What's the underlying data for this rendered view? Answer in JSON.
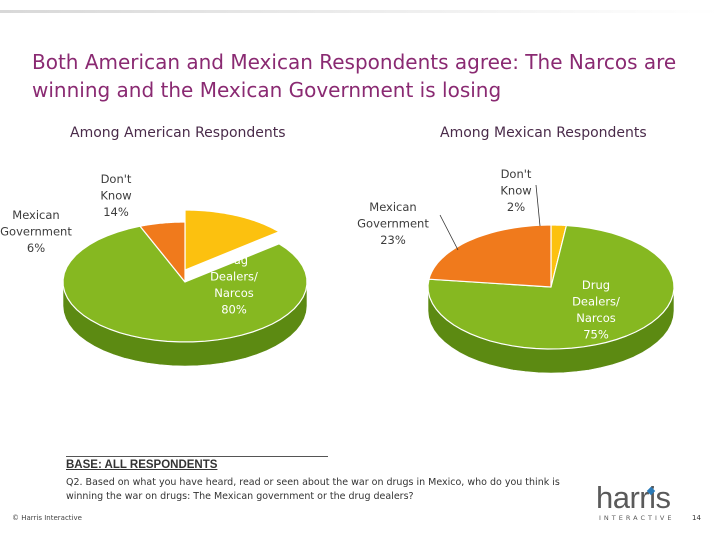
{
  "title": "Both American and Mexican Respondents agree:  The Narcos are winning and the Mexican Government is losing",
  "colors": {
    "title": "#8a2a72",
    "green": "#86b821",
    "green_side": "#5c8a12",
    "orange": "#f07a1c",
    "orange_side": "#b5561a",
    "yellow": "#fcc10f",
    "yellow_side": "#c89606"
  },
  "chart_data": [
    {
      "type": "pie",
      "title": "Among American Respondents",
      "slices": [
        {
          "label_lines": [
            "Don't",
            "Know"
          ],
          "value_text": "14%",
          "value": 14,
          "color": "yellow"
        },
        {
          "label_lines": [
            "Drug",
            "Dealers/",
            "Narcos"
          ],
          "value_text": "80%",
          "value": 80,
          "color": "green"
        },
        {
          "label_lines": [
            "Mexican",
            "Government"
          ],
          "value_text": "6%",
          "value": 6,
          "color": "orange"
        }
      ]
    },
    {
      "type": "pie",
      "title": "Among Mexican Respondents",
      "slices": [
        {
          "label_lines": [
            "Don't",
            "Know"
          ],
          "value_text": "2%",
          "value": 2,
          "color": "yellow"
        },
        {
          "label_lines": [
            "Drug",
            "Dealers/",
            "Narcos"
          ],
          "value_text": "75%",
          "value": 75,
          "color": "green"
        },
        {
          "label_lines": [
            "Mexican",
            "Government"
          ],
          "value_text": "23%",
          "value": 23,
          "color": "orange"
        }
      ]
    }
  ],
  "base_title": "BASE: ALL RESPONDENTS",
  "question": "Q2. Based on what you have heard, read or seen about the war on drugs in Mexico, who do you think is winning the war on drugs: The Mexican government or the drug dealers?",
  "copyright": "© Harris Interactive",
  "logo": {
    "word": "harris",
    "tagline": "INTERACTIVE"
  },
  "page_number": "14"
}
